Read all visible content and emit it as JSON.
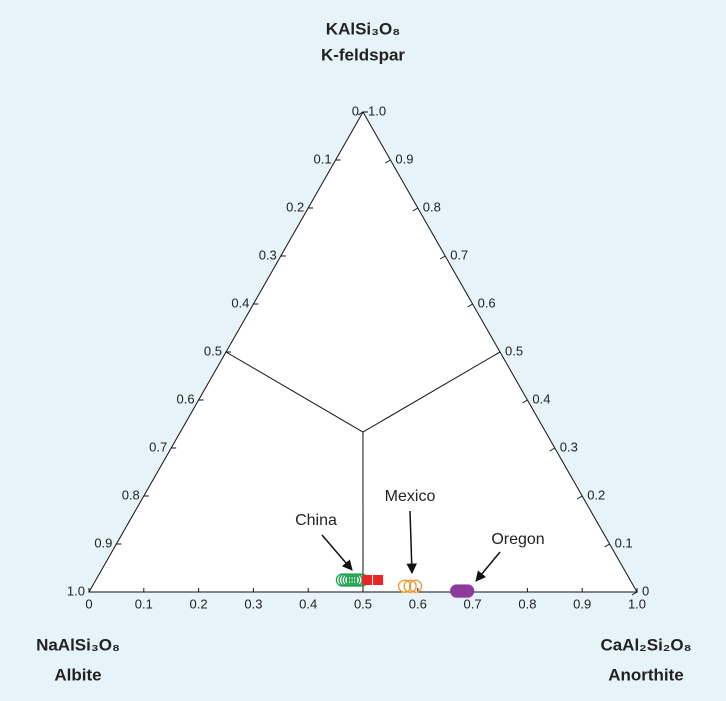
{
  "chart_data": {
    "type": "ternary",
    "top_formula": "KAlSi₃O₈",
    "top_label": "K-feldspar",
    "left_formula": "NaAlSi₃O₈",
    "left_label": "Albite",
    "right_formula": "CaAl₂Si₂O₈",
    "right_label": "Anorthite",
    "albite_ticks": [
      0,
      0.1,
      0.2,
      0.3,
      0.4,
      0.5,
      0.6,
      0.7,
      0.8,
      0.9,
      {
        "value": 1,
        "label": "1.0"
      }
    ],
    "k_feldspar_ticks": [
      0,
      0.1,
      0.2,
      0.3,
      0.4,
      0.5,
      0.6,
      0.7,
      0.8,
      0.9,
      {
        "value": 1,
        "label": "1.0"
      }
    ],
    "anorthite_ticks": [
      0,
      0.1,
      0.2,
      0.3,
      0.4,
      0.5,
      0.6,
      0.7,
      0.8,
      0.9,
      {
        "value": 1,
        "label": "1.0"
      }
    ],
    "boundary_lines": [
      {
        "anorthite": [
          0,
          0.3333
        ],
        "k_feldspar": [
          0.5,
          0.3333
        ]
      },
      {
        "anorthite": [
          0.5,
          0.3333
        ],
        "k_feldspar": [
          0.5,
          0.3333
        ]
      },
      {
        "anorthite": [
          0.5,
          0.3333
        ],
        "k_feldspar": [
          0,
          0.3333
        ]
      }
    ],
    "series": [
      {
        "name": "China",
        "color": "#1aa04a",
        "marker": "open-circle",
        "anorthite": [
          0.45,
          0.455,
          0.46,
          0.465,
          0.47,
          0.475,
          0.48,
          0.485
        ],
        "k_feldspar": [
          0.025,
          0.025,
          0.025,
          0.025,
          0.025,
          0.025,
          0.025,
          0.025
        ]
      },
      {
        "color": "#e8262a",
        "marker": "square",
        "anorthite": [
          0.495,
          0.515
        ],
        "k_feldspar": [
          0.025,
          0.025
        ]
      },
      {
        "name": "Mexico",
        "color": "#f0962e",
        "marker": "open-circle",
        "anorthite": [
          0.57,
          0.58,
          0.59
        ],
        "k_feldspar": [
          0.012,
          0.012,
          0.012
        ]
      },
      {
        "name": "Oregon",
        "color": "#8e3a9c",
        "marker": "filled-circle",
        "anorthite": [
          0.67,
          0.675,
          0.68,
          0.685,
          0.69
        ],
        "k_feldspar": [
          0.002,
          0.002,
          0.002,
          0.002,
          0.002
        ]
      }
    ]
  }
}
